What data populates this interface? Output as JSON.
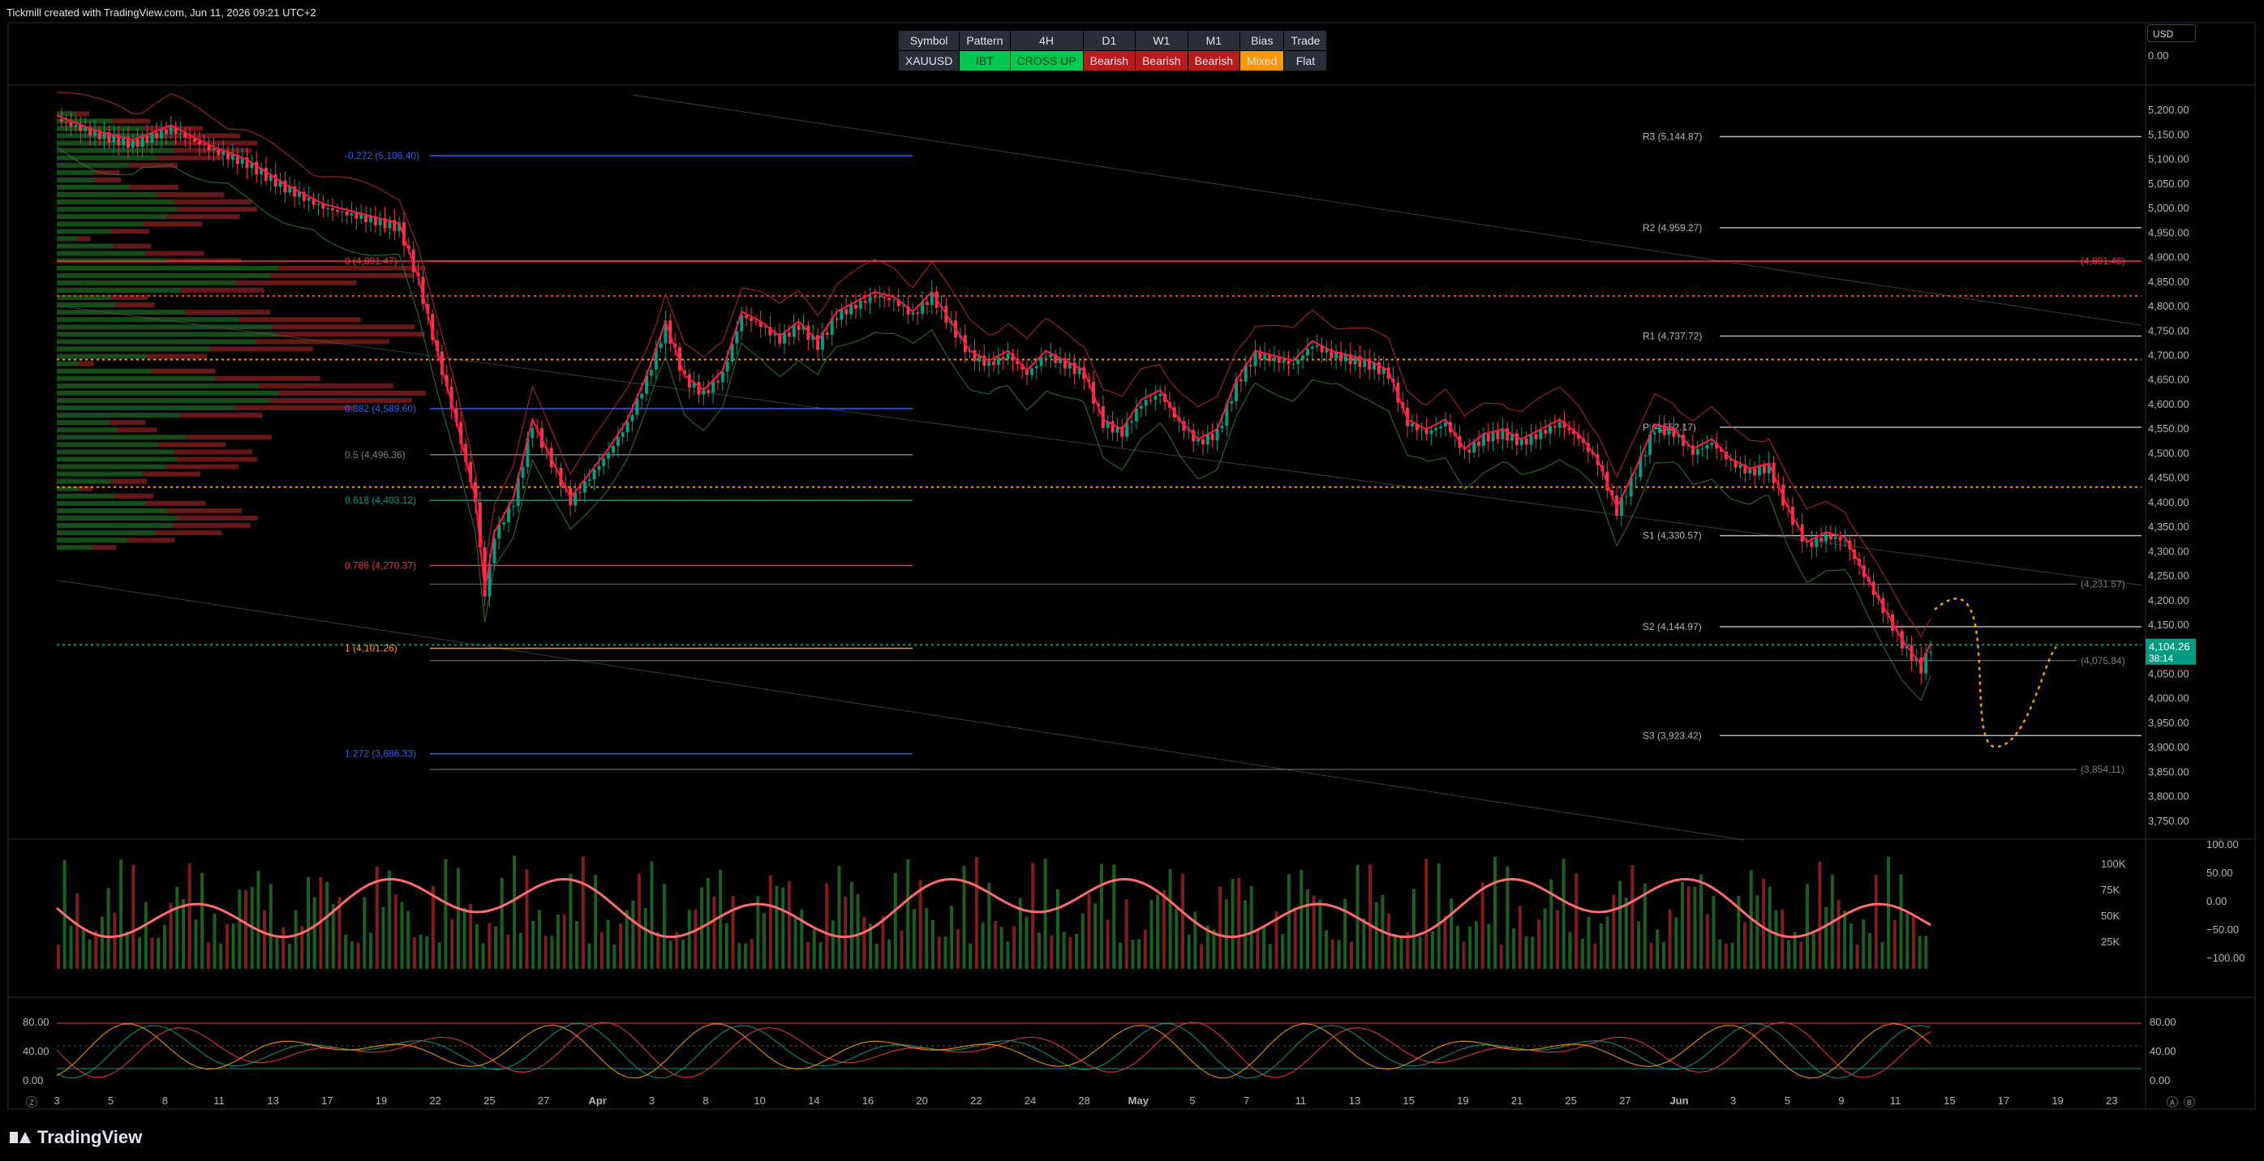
{
  "header": "Tickmill created with TradingView.com, Jun 11, 2026 09:21 UTC+2",
  "brand": "TradingView",
  "currency_button": "USD",
  "signals_table": {
    "headers": [
      "Symbol",
      "Pattern",
      "4H",
      "D1",
      "W1",
      "M1",
      "Bias",
      "Trade"
    ],
    "values": [
      "XAUUSD",
      "IBT",
      "CROSS UP",
      "Bearish",
      "Bearish",
      "Bearish",
      "Mixed",
      "Flat"
    ],
    "value_colors": [
      "#2a2e39",
      "#00c853",
      "#00c853",
      "#b71c1c",
      "#b71c1c",
      "#b71c1c",
      "#ff9800",
      "#2a2e39"
    ]
  },
  "colors": {
    "up": "#089981",
    "down": "#f23645",
    "fib_blue": "#2962ff",
    "fib_orange": "#ff9800",
    "pivot": "#b2b5be"
  },
  "chart_data": {
    "type": "line",
    "symbol": "XAUUSD",
    "price_axis": {
      "ticks": [
        "0.00",
        "5,200.00",
        "5,150.00",
        "5,100.00",
        "5,050.00",
        "5,000.00",
        "4,950.00",
        "4,900.00",
        "4,850.00",
        "4,800.00",
        "4,750.00",
        "4,700.00",
        "4,650.00",
        "4,600.00",
        "4,550.00",
        "4,500.00",
        "4,450.00",
        "4,400.00",
        "4,350.00",
        "4,300.00",
        "4,250.00",
        "4,200.00",
        "4,150.00",
        "4,100.00",
        "4,050.00",
        "4,000.00",
        "3,950.00",
        "3,900.00",
        "3,850.00",
        "3,800.00",
        "3,750.00"
      ],
      "ylim": [
        3720,
        5250
      ]
    },
    "x_axis_labels": [
      "3",
      "5",
      "8",
      "11",
      "13",
      "17",
      "19",
      "22",
      "25",
      "27",
      "Apr",
      "3",
      "8",
      "10",
      "14",
      "16",
      "20",
      "22",
      "24",
      "28",
      "May",
      "5",
      "7",
      "11",
      "13",
      "15",
      "19",
      "21",
      "25",
      "27",
      "Jun",
      "3",
      "5",
      "9",
      "11",
      "15",
      "17",
      "19",
      "23"
    ],
    "current_price": {
      "value": "4,104.26",
      "countdown": "38:14"
    },
    "close_series": [
      {
        "x": 0,
        "y": 5180
      },
      {
        "x": 2,
        "y": 5150
      },
      {
        "x": 4,
        "y": 5130
      },
      {
        "x": 6,
        "y": 5160
      },
      {
        "x": 8,
        "y": 5120
      },
      {
        "x": 10,
        "y": 5090
      },
      {
        "x": 12,
        "y": 5040
      },
      {
        "x": 14,
        "y": 5000
      },
      {
        "x": 16,
        "y": 4980
      },
      {
        "x": 18,
        "y": 4960
      },
      {
        "x": 19,
        "y": 4850
      },
      {
        "x": 20,
        "y": 4700
      },
      {
        "x": 21,
        "y": 4560
      },
      {
        "x": 22,
        "y": 4400
      },
      {
        "x": 22.5,
        "y": 4210
      },
      {
        "x": 23,
        "y": 4330
      },
      {
        "x": 24,
        "y": 4400
      },
      {
        "x": 25,
        "y": 4560
      },
      {
        "x": 26,
        "y": 4480
      },
      {
        "x": 27,
        "y": 4400
      },
      {
        "x": 28,
        "y": 4450
      },
      {
        "x": 29,
        "y": 4500
      },
      {
        "x": 30,
        "y": 4560
      },
      {
        "x": 31,
        "y": 4650
      },
      {
        "x": 32,
        "y": 4760
      },
      {
        "x": 33,
        "y": 4650
      },
      {
        "x": 34,
        "y": 4620
      },
      {
        "x": 35,
        "y": 4660
      },
      {
        "x": 36,
        "y": 4780
      },
      {
        "x": 37,
        "y": 4760
      },
      {
        "x": 38,
        "y": 4730
      },
      {
        "x": 39,
        "y": 4760
      },
      {
        "x": 40,
        "y": 4720
      },
      {
        "x": 41,
        "y": 4780
      },
      {
        "x": 42,
        "y": 4800
      },
      {
        "x": 43,
        "y": 4820
      },
      {
        "x": 44,
        "y": 4810
      },
      {
        "x": 45,
        "y": 4780
      },
      {
        "x": 46,
        "y": 4820
      },
      {
        "x": 47,
        "y": 4760
      },
      {
        "x": 48,
        "y": 4700
      },
      {
        "x": 49,
        "y": 4680
      },
      {
        "x": 50,
        "y": 4700
      },
      {
        "x": 51,
        "y": 4660
      },
      {
        "x": 52,
        "y": 4700
      },
      {
        "x": 53,
        "y": 4680
      },
      {
        "x": 54,
        "y": 4660
      },
      {
        "x": 55,
        "y": 4560
      },
      {
        "x": 56,
        "y": 4540
      },
      {
        "x": 57,
        "y": 4600
      },
      {
        "x": 58,
        "y": 4620
      },
      {
        "x": 59,
        "y": 4560
      },
      {
        "x": 60,
        "y": 4520
      },
      {
        "x": 61,
        "y": 4540
      },
      {
        "x": 62,
        "y": 4640
      },
      {
        "x": 63,
        "y": 4700
      },
      {
        "x": 64,
        "y": 4690
      },
      {
        "x": 65,
        "y": 4680
      },
      {
        "x": 66,
        "y": 4720
      },
      {
        "x": 67,
        "y": 4700
      },
      {
        "x": 68,
        "y": 4690
      },
      {
        "x": 69,
        "y": 4680
      },
      {
        "x": 70,
        "y": 4660
      },
      {
        "x": 71,
        "y": 4560
      },
      {
        "x": 72,
        "y": 4540
      },
      {
        "x": 73,
        "y": 4560
      },
      {
        "x": 74,
        "y": 4500
      },
      {
        "x": 75,
        "y": 4530
      },
      {
        "x": 76,
        "y": 4540
      },
      {
        "x": 77,
        "y": 4520
      },
      {
        "x": 78,
        "y": 4540
      },
      {
        "x": 79,
        "y": 4560
      },
      {
        "x": 80,
        "y": 4530
      },
      {
        "x": 81,
        "y": 4480
      },
      {
        "x": 82,
        "y": 4380
      },
      {
        "x": 83,
        "y": 4460
      },
      {
        "x": 84,
        "y": 4550
      },
      {
        "x": 85,
        "y": 4540
      },
      {
        "x": 86,
        "y": 4500
      },
      {
        "x": 87,
        "y": 4520
      },
      {
        "x": 88,
        "y": 4480
      },
      {
        "x": 89,
        "y": 4460
      },
      {
        "x": 90,
        "y": 4470
      },
      {
        "x": 91,
        "y": 4380
      },
      {
        "x": 92,
        "y": 4310
      },
      {
        "x": 93,
        "y": 4330
      },
      {
        "x": 94,
        "y": 4320
      },
      {
        "x": 95,
        "y": 4250
      },
      {
        "x": 96,
        "y": 4180
      },
      {
        "x": 97,
        "y": 4110
      },
      {
        "x": 98,
        "y": 4060
      },
      {
        "x": 98.5,
        "y": 4104
      }
    ],
    "fib_levels": [
      {
        "label": "1.272 (3,886.33)",
        "value": 3886,
        "color": "#2962ff"
      },
      {
        "label": "1 (4,101.26)",
        "value": 4101,
        "color": "#ff9800"
      },
      {
        "label": "0.786 (4,270.37)",
        "value": 4270,
        "color": "#f23645"
      },
      {
        "label": "0.618 (4,403.12)",
        "value": 4403,
        "color": "#089981"
      },
      {
        "label": "0.5 (4,496.36)",
        "value": 4496,
        "color": "#787b86"
      },
      {
        "label": "0.382 (4,589.60)",
        "value": 4590,
        "color": "#2962ff"
      },
      {
        "label": "0 (4,891.47)",
        "value": 4891,
        "color": "#f23645"
      },
      {
        "label": "-0.272 (5,106.40)",
        "value": 5106,
        "color": "#2962ff"
      }
    ],
    "pivots": [
      {
        "label": "R3 (5,144.87)",
        "value": 5145
      },
      {
        "label": "R2 (4,959.27)",
        "value": 4959
      },
      {
        "label": "R1 (4,737.72)",
        "value": 4738
      },
      {
        "label": "P (4,552.17)",
        "value": 4552
      },
      {
        "label": "S1 (4,330.57)",
        "value": 4331
      },
      {
        "label": "S2 (4,144.97)",
        "value": 4145
      },
      {
        "label": "S3 (3,923.42)",
        "value": 3923
      }
    ],
    "right_levels": [
      {
        "label": "(4,891.46)",
        "value": 4891,
        "color": "#f23645"
      },
      {
        "label": "(4,231.57)",
        "value": 4232,
        "color": "#787b86"
      },
      {
        "label": "(4,075.84)",
        "value": 4076,
        "color": "#787b86"
      },
      {
        "label": "(3,854.11)",
        "value": 3854,
        "color": "#787b86"
      }
    ],
    "volume_axis": [
      "100K",
      "75K",
      "50K",
      "25K"
    ],
    "oscillator_axis": [
      "100.00",
      "50.00",
      "0.00",
      "−50.00",
      "−100.00"
    ],
    "stoch_axis": [
      "80.00",
      "40.00",
      "0.00"
    ]
  },
  "bottom_buttons": {
    "left": "Z",
    "right_a": "A",
    "right_b": "B"
  }
}
